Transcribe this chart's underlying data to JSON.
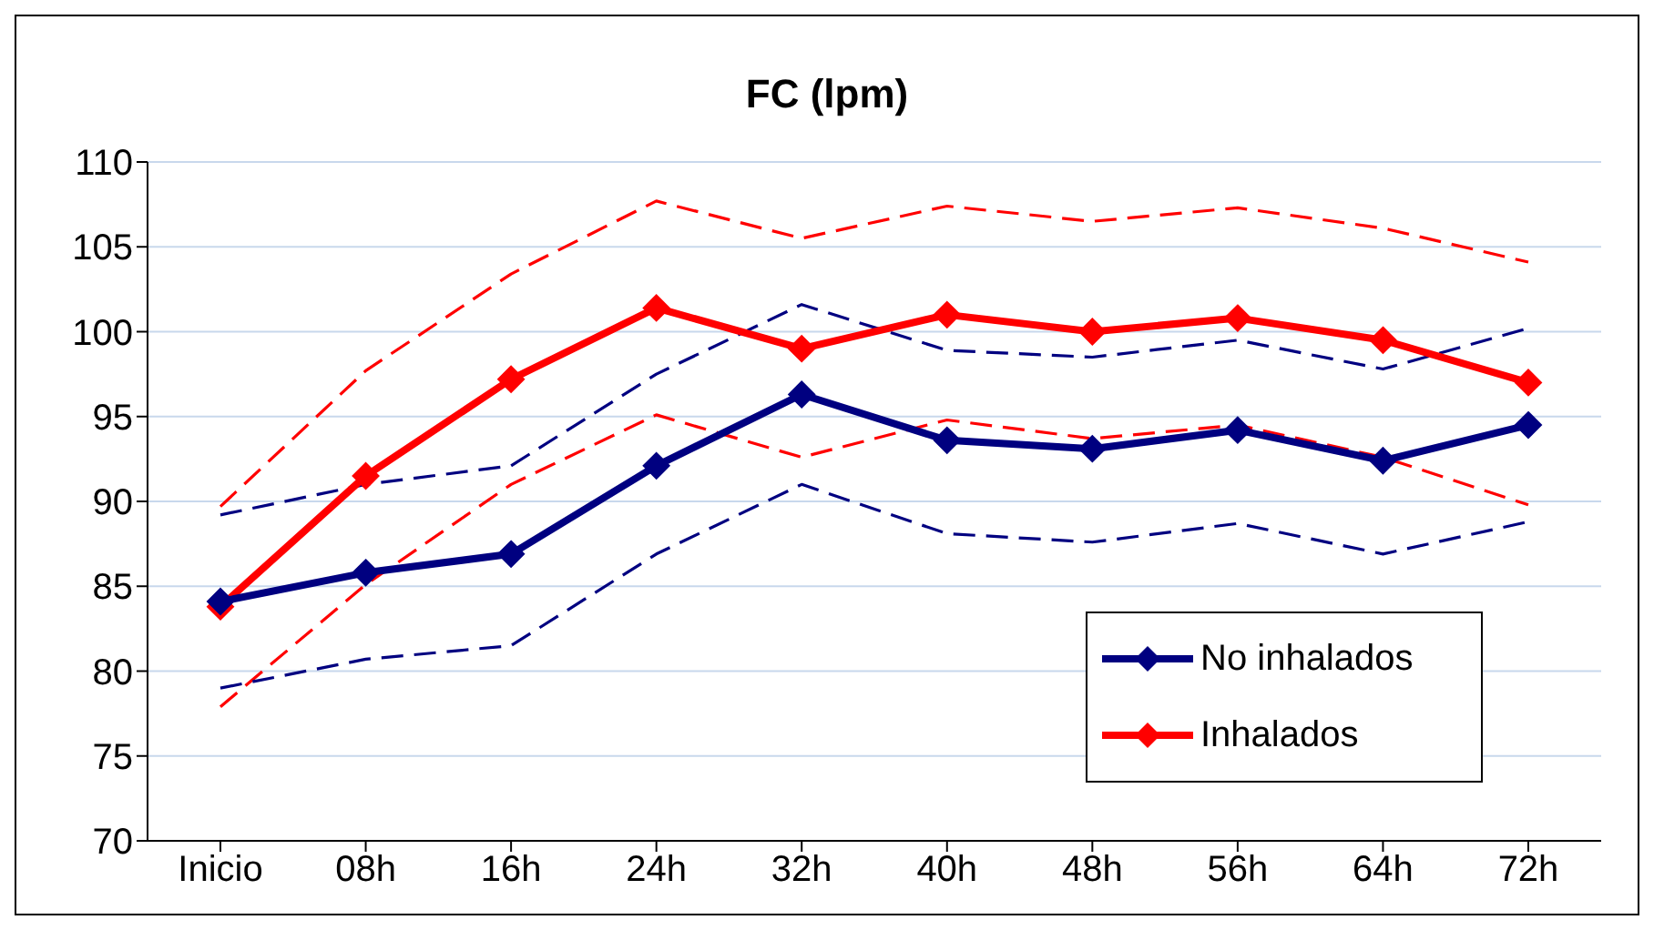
{
  "chart_data": {
    "type": "line",
    "title": "FC (lpm)",
    "categories": [
      "Inicio",
      "08h",
      "16h",
      "24h",
      "32h",
      "40h",
      "48h",
      "56h",
      "64h",
      "72h"
    ],
    "series": [
      {
        "name": "No inhalados",
        "color": "#000080",
        "marker": "diamond",
        "line_style": "solid",
        "values": [
          84.1,
          85.8,
          86.9,
          92.1,
          96.3,
          93.6,
          93.1,
          94.2,
          92.4,
          94.5
        ]
      },
      {
        "name": "Inhalados",
        "color": "#ff0000",
        "marker": "diamond",
        "line_style": "solid",
        "values": [
          83.8,
          91.5,
          97.2,
          101.4,
          99.0,
          101.0,
          100.0,
          100.8,
          99.5,
          97.0
        ]
      },
      {
        "color": "#000080",
        "marker": "none",
        "line_style": "dashed",
        "values": [
          89.2,
          91.0,
          92.1,
          97.5,
          101.6,
          98.9,
          98.5,
          99.5,
          97.8,
          100.2
        ]
      },
      {
        "color": "#000080",
        "marker": "none",
        "line_style": "dashed",
        "values": [
          79.0,
          80.7,
          81.5,
          86.9,
          91.0,
          88.1,
          87.6,
          88.7,
          86.9,
          88.8
        ]
      },
      {
        "color": "#ff0000",
        "marker": "none",
        "line_style": "dashed",
        "values": [
          89.7,
          97.7,
          103.4,
          107.7,
          105.5,
          107.4,
          106.5,
          107.3,
          106.1,
          104.1
        ]
      },
      {
        "color": "#ff0000",
        "marker": "none",
        "line_style": "dashed",
        "values": [
          77.9,
          85.1,
          91.0,
          95.1,
          92.6,
          94.8,
          93.7,
          94.5,
          92.6,
          89.8
        ]
      }
    ],
    "ylim": [
      70,
      110
    ],
    "yticks": [
      70,
      75,
      80,
      85,
      90,
      95,
      100,
      105,
      110
    ],
    "grid": "y",
    "legend": "bottom right"
  }
}
